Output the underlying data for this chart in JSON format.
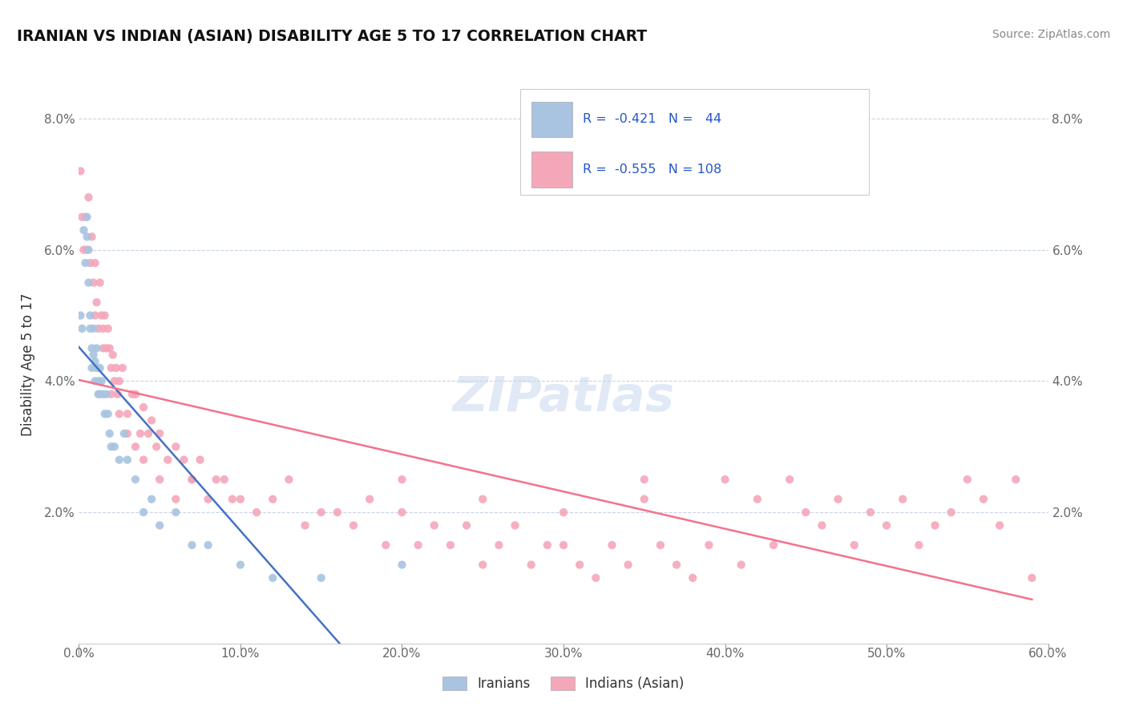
{
  "title": "IRANIAN VS INDIAN (ASIAN) DISABILITY AGE 5 TO 17 CORRELATION CHART",
  "source": "Source: ZipAtlas.com",
  "ylabel": "Disability Age 5 to 17",
  "xlim": [
    0.0,
    0.6
  ],
  "ylim": [
    0.0,
    0.085
  ],
  "xtick_vals": [
    0.0,
    0.1,
    0.2,
    0.3,
    0.4,
    0.5,
    0.6
  ],
  "ytick_vals": [
    0.02,
    0.04,
    0.06,
    0.08
  ],
  "ytick_labels": [
    "2.0%",
    "4.0%",
    "6.0%",
    "8.0%"
  ],
  "legend_r_n": [
    {
      "R": "-0.421",
      "N": "44"
    },
    {
      "R": "-0.555",
      "N": "108"
    }
  ],
  "iranian_color": "#a8c4e0",
  "indian_color": "#f4a7b9",
  "iranian_line_color": "#4472c4",
  "indian_line_color": "#f4728a",
  "trendline_extend_color": "#b8b8b8",
  "watermark": "ZIPatlas",
  "background_color": "#ffffff",
  "grid_color": "#c8d4e8",
  "iranians_x": [
    0.001,
    0.002,
    0.003,
    0.004,
    0.005,
    0.005,
    0.006,
    0.006,
    0.007,
    0.007,
    0.008,
    0.008,
    0.009,
    0.009,
    0.01,
    0.01,
    0.011,
    0.011,
    0.012,
    0.012,
    0.013,
    0.013,
    0.014,
    0.015,
    0.016,
    0.017,
    0.018,
    0.019,
    0.02,
    0.022,
    0.025,
    0.028,
    0.03,
    0.035,
    0.04,
    0.045,
    0.05,
    0.06,
    0.07,
    0.08,
    0.1,
    0.12,
    0.15,
    0.2
  ],
  "iranians_y": [
    0.05,
    0.048,
    0.063,
    0.058,
    0.062,
    0.065,
    0.06,
    0.055,
    0.05,
    0.048,
    0.045,
    0.042,
    0.048,
    0.044,
    0.043,
    0.04,
    0.045,
    0.042,
    0.04,
    0.038,
    0.042,
    0.038,
    0.04,
    0.038,
    0.035,
    0.038,
    0.035,
    0.032,
    0.03,
    0.03,
    0.028,
    0.032,
    0.028,
    0.025,
    0.02,
    0.022,
    0.018,
    0.02,
    0.015,
    0.015,
    0.012,
    0.01,
    0.01,
    0.012
  ],
  "indians_x": [
    0.001,
    0.002,
    0.003,
    0.004,
    0.005,
    0.006,
    0.007,
    0.008,
    0.009,
    0.01,
    0.011,
    0.012,
    0.013,
    0.014,
    0.015,
    0.016,
    0.017,
    0.018,
    0.019,
    0.02,
    0.021,
    0.022,
    0.023,
    0.024,
    0.025,
    0.027,
    0.03,
    0.033,
    0.035,
    0.038,
    0.04,
    0.043,
    0.045,
    0.048,
    0.05,
    0.055,
    0.06,
    0.065,
    0.07,
    0.075,
    0.08,
    0.085,
    0.09,
    0.095,
    0.1,
    0.11,
    0.12,
    0.13,
    0.14,
    0.15,
    0.16,
    0.17,
    0.18,
    0.19,
    0.2,
    0.21,
    0.22,
    0.23,
    0.24,
    0.25,
    0.26,
    0.27,
    0.28,
    0.29,
    0.3,
    0.31,
    0.32,
    0.33,
    0.34,
    0.35,
    0.36,
    0.37,
    0.38,
    0.39,
    0.4,
    0.41,
    0.42,
    0.43,
    0.44,
    0.45,
    0.46,
    0.47,
    0.48,
    0.49,
    0.5,
    0.51,
    0.52,
    0.53,
    0.54,
    0.55,
    0.56,
    0.57,
    0.58,
    0.59,
    0.01,
    0.015,
    0.02,
    0.025,
    0.03,
    0.035,
    0.04,
    0.05,
    0.06,
    0.07,
    0.2,
    0.25,
    0.3,
    0.35
  ],
  "indians_y": [
    0.072,
    0.065,
    0.06,
    0.065,
    0.06,
    0.068,
    0.058,
    0.062,
    0.055,
    0.058,
    0.052,
    0.048,
    0.055,
    0.05,
    0.048,
    0.05,
    0.045,
    0.048,
    0.045,
    0.042,
    0.044,
    0.04,
    0.042,
    0.038,
    0.04,
    0.042,
    0.035,
    0.038,
    0.038,
    0.032,
    0.036,
    0.032,
    0.034,
    0.03,
    0.032,
    0.028,
    0.03,
    0.028,
    0.025,
    0.028,
    0.022,
    0.025,
    0.025,
    0.022,
    0.022,
    0.02,
    0.022,
    0.025,
    0.018,
    0.02,
    0.02,
    0.018,
    0.022,
    0.015,
    0.02,
    0.015,
    0.018,
    0.015,
    0.018,
    0.012,
    0.015,
    0.018,
    0.012,
    0.015,
    0.015,
    0.012,
    0.01,
    0.015,
    0.012,
    0.025,
    0.015,
    0.012,
    0.01,
    0.015,
    0.025,
    0.012,
    0.022,
    0.015,
    0.025,
    0.02,
    0.018,
    0.022,
    0.015,
    0.02,
    0.018,
    0.022,
    0.015,
    0.018,
    0.02,
    0.025,
    0.022,
    0.018,
    0.025,
    0.01,
    0.05,
    0.045,
    0.038,
    0.035,
    0.032,
    0.03,
    0.028,
    0.025,
    0.022,
    0.025,
    0.025,
    0.022,
    0.02,
    0.022
  ]
}
